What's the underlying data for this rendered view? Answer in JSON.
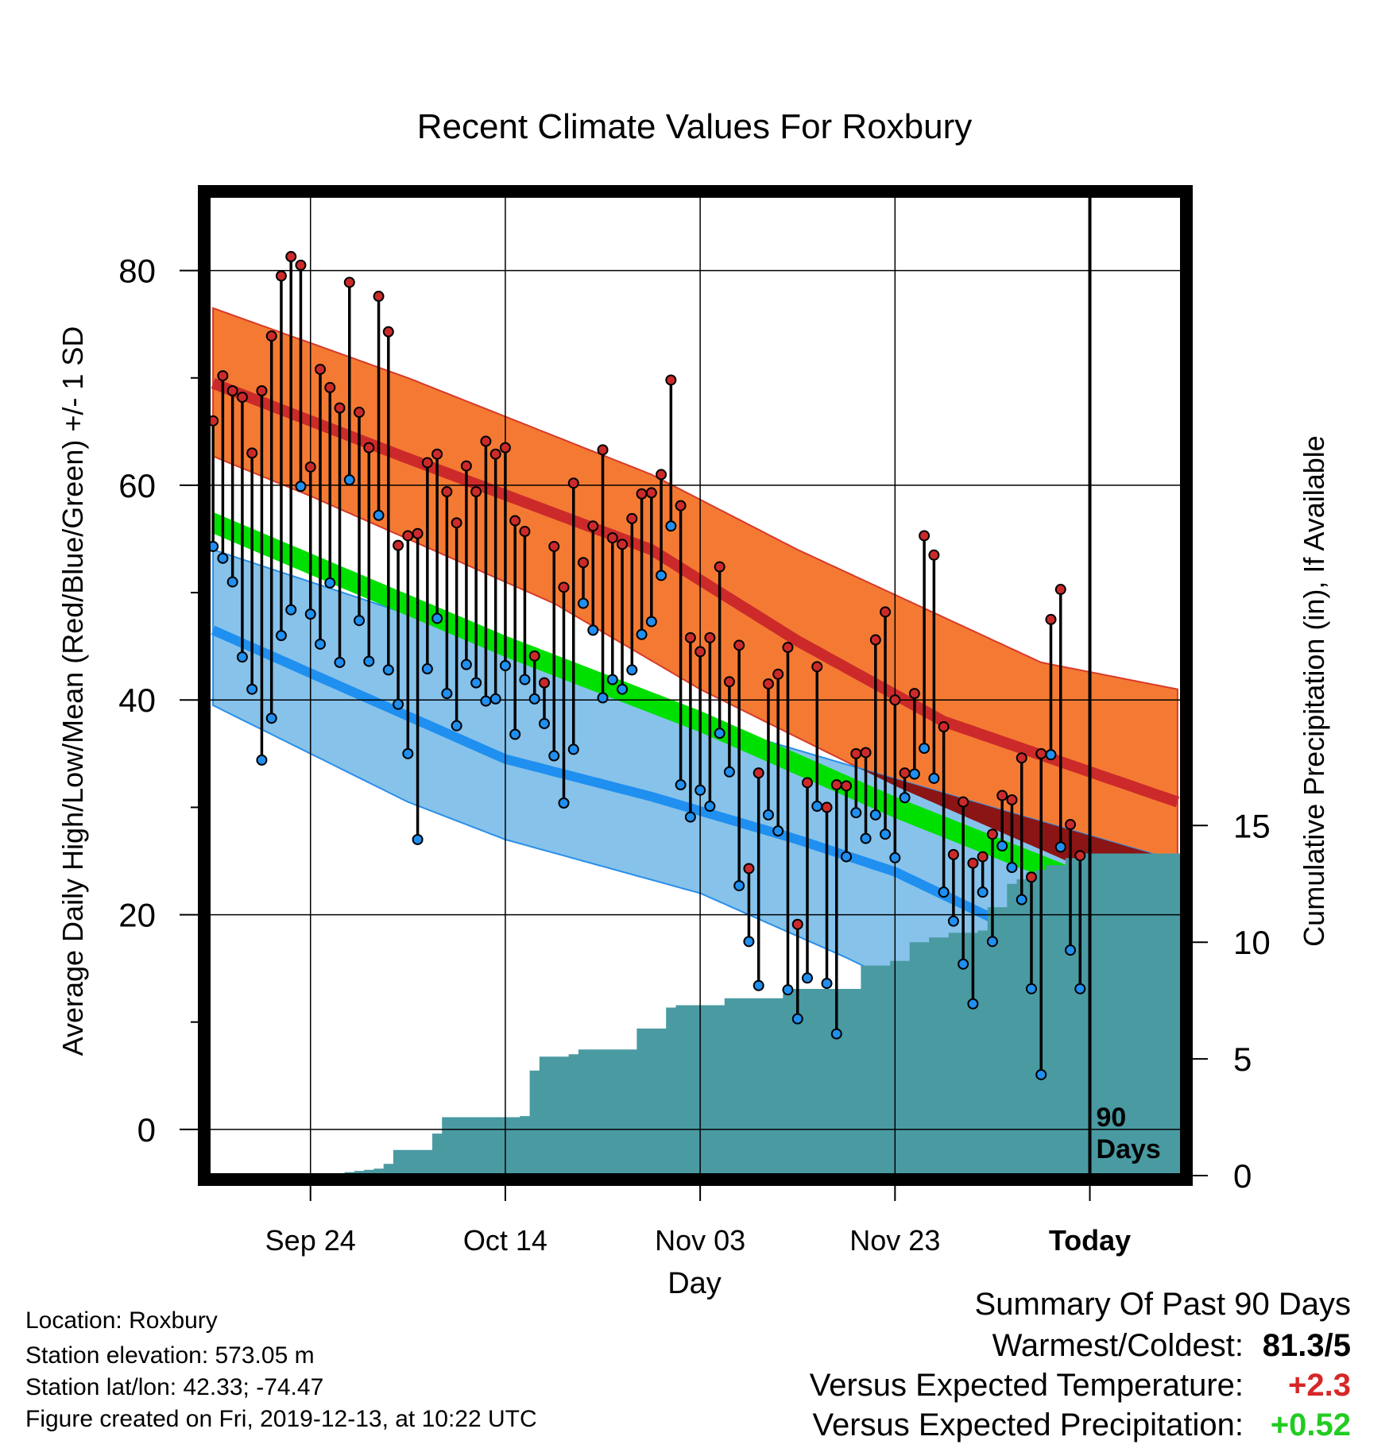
{
  "chart_data": {
    "type": "line",
    "title": "Recent Climate Values For Roxbury",
    "xlabel": "Day",
    "ylabel": "Average Daily High/Low/Mean (Red/Blue/Green) +/- 1 SD",
    "y2label": "Cumulative Precipitation (in), If Available",
    "x_tick_labels": [
      "Sep 24",
      "Oct 14",
      "Nov 03",
      "Nov 23",
      "Today"
    ],
    "x_tick_days": [
      10,
      30,
      50,
      70,
      90
    ],
    "xlim": [
      -0.5,
      99.5
    ],
    "y_ticks": [
      0,
      20,
      40,
      60,
      80
    ],
    "ylim": [
      -4.3,
      87
    ],
    "y2_ticks": [
      0,
      5,
      10,
      15
    ],
    "y2lim": [
      0,
      42
    ],
    "today_label": "90 Days",
    "grid": true,
    "colors": {
      "high_band": "#f47a33",
      "high_mean": "#cc2a2a",
      "low_band": "#86c2ea",
      "low_mean": "#1f8ff0",
      "mean_band": "#00e000",
      "overlap": "#8b1515",
      "precip": "#4a9aa2",
      "high_marker": "#cc2a2a",
      "low_marker": "#1f8ff0"
    },
    "normals": {
      "high_mean": [
        [
          0,
          69.5
        ],
        [
          20,
          62.5
        ],
        [
          45,
          54
        ],
        [
          60,
          45.5
        ],
        [
          75,
          38
        ],
        [
          99,
          30.5
        ]
      ],
      "high_upper": [
        [
          0,
          76.5
        ],
        [
          20,
          70
        ],
        [
          45,
          61
        ],
        [
          60,
          54
        ],
        [
          85,
          43.5
        ],
        [
          99,
          41
        ]
      ],
      "high_lower": [
        [
          0,
          62.7
        ],
        [
          10,
          59
        ],
        [
          20,
          55
        ],
        [
          35,
          49
        ],
        [
          50,
          41
        ],
        [
          60,
          36.5
        ],
        [
          70,
          32
        ],
        [
          99,
          20.5
        ]
      ],
      "low_mean": [
        [
          0,
          46.5
        ],
        [
          10,
          42.5
        ],
        [
          20,
          38.5
        ],
        [
          30,
          34.5
        ],
        [
          45,
          31
        ],
        [
          60,
          27
        ],
        [
          70,
          24
        ],
        [
          85,
          17.5
        ],
        [
          99,
          13.5
        ]
      ],
      "low_upper": [
        [
          0,
          54
        ],
        [
          30,
          45
        ],
        [
          50,
          38
        ],
        [
          65,
          34
        ],
        [
          80,
          30
        ],
        [
          99,
          25
        ]
      ],
      "low_lower": [
        [
          0,
          39.5
        ],
        [
          10,
          35
        ],
        [
          20,
          30.5
        ],
        [
          30,
          27
        ],
        [
          50,
          22
        ],
        [
          65,
          16
        ],
        [
          70,
          13.8
        ],
        [
          80,
          10
        ],
        [
          99,
          5
        ]
      ],
      "mean_upper": [
        [
          0,
          57.5
        ],
        [
          30,
          46
        ],
        [
          50,
          39
        ],
        [
          70,
          31
        ],
        [
          99,
          20.5
        ]
      ],
      "mean_lower": [
        [
          0,
          55.5
        ],
        [
          30,
          44
        ],
        [
          50,
          37
        ],
        [
          70,
          29
        ],
        [
          99,
          18.5
        ]
      ]
    },
    "series": [
      {
        "name": "High",
        "values": [
          66,
          70.2,
          68.8,
          68.2,
          63,
          68.8,
          73.9,
          79.5,
          81.3,
          80.5,
          61.7,
          70.8,
          69.1,
          67.2,
          78.9,
          66.8,
          63.5,
          77.6,
          74.3,
          54.4,
          55.3,
          55.5,
          62.1,
          62.9,
          59.4,
          56.5,
          61.8,
          59.4,
          64.1,
          62.9,
          63.5,
          56.7,
          55.7,
          44.1,
          41.6,
          54.3,
          50.5,
          60.2,
          52.8,
          56.2,
          63.3,
          55.1,
          54.5,
          56.9,
          59.2,
          59.3,
          61,
          69.8,
          58.1,
          45.8,
          44.5,
          45.8,
          52.4,
          41.7,
          45.1,
          24.3,
          33.2,
          41.5,
          42.4,
          44.9,
          19.1,
          32.3,
          43.1,
          30,
          32.1,
          32,
          35,
          35.1,
          45.6,
          48.2,
          40,
          33.2,
          40.6,
          55.3,
          53.5,
          37.5,
          25.6,
          30.5,
          24.8,
          25.4,
          27.5,
          31.1,
          30.7,
          34.6,
          23.5,
          35,
          47.5,
          50.3,
          28.4,
          25.5
        ]
      },
      {
        "name": "Low",
        "values": [
          54.3,
          53.2,
          51,
          44,
          41,
          34.4,
          38.3,
          46,
          48.4,
          59.9,
          48,
          45.2,
          50.9,
          43.5,
          60.5,
          47.4,
          43.6,
          57.2,
          42.8,
          39.6,
          35,
          27,
          42.9,
          47.6,
          40.6,
          37.6,
          43.3,
          41.6,
          39.9,
          40.1,
          43.2,
          36.8,
          41.9,
          40.1,
          37.8,
          34.8,
          30.4,
          35.4,
          49,
          46.5,
          40.2,
          41.9,
          41,
          42.8,
          46.1,
          47.3,
          51.6,
          56.2,
          32.1,
          29.1,
          31.6,
          30.1,
          36.9,
          33.3,
          22.7,
          17.5,
          13.4,
          29.3,
          27.8,
          13,
          10.3,
          14.1,
          30.1,
          13.6,
          8.9,
          25.4,
          29.5,
          27.1,
          29.3,
          27.5,
          25.3,
          30.9,
          33.1,
          35.5,
          32.7,
          22.1,
          19.4,
          15.4,
          11.7,
          22.1,
          17.5,
          26.4,
          24.4,
          21.4,
          13.1,
          5.1,
          34.9,
          26.3,
          16.7,
          13.1
        ]
      },
      {
        "name": "Precip",
        "values": [
          0,
          0,
          0,
          0,
          0,
          0,
          0,
          0,
          0,
          0,
          0,
          0,
          0.05,
          0.1,
          0.15,
          0.2,
          0.25,
          0.3,
          0.5,
          1.1,
          1.1,
          1.1,
          1.1,
          1.8,
          2.5,
          2.5,
          2.5,
          2.5,
          2.5,
          2.5,
          2.5,
          2.5,
          2.55,
          4.5,
          5.1,
          5.1,
          5.1,
          5.2,
          5.4,
          5.4,
          5.4,
          5.4,
          5.4,
          5.4,
          6.3,
          6.3,
          6.3,
          7.2,
          7.3,
          7.3,
          7.3,
          7.3,
          7.3,
          7.6,
          7.6,
          7.6,
          7.6,
          7.6,
          7.6,
          7.8,
          8.0,
          8.0,
          8.0,
          8.0,
          8.0,
          8.0,
          8.0,
          9.0,
          9.0,
          9.0,
          9.2,
          9.2,
          10.0,
          10.0,
          10.2,
          10.2,
          10.4,
          10.4,
          10.4,
          10.5,
          11.5,
          11.5,
          12.5,
          12.7,
          13.0,
          13.1,
          13.3,
          13.3,
          13.6,
          13.8,
          13.8,
          13.8,
          13.8,
          13.8,
          13.8,
          13.8,
          13.8,
          13.8,
          13.8,
          13.8
        ]
      }
    ]
  },
  "summary": {
    "title": "Summary Of Past 90 Days",
    "rows": [
      {
        "label": "Warmest/Coldest:",
        "value": "81.3/5",
        "color": "#000000"
      },
      {
        "label": "Versus Expected Temperature:",
        "value": "+2.3",
        "color": "#d62728"
      },
      {
        "label": "Versus Expected Precipitation:",
        "value": "+0.52",
        "color": "#22cc22"
      }
    ]
  },
  "station": {
    "location": "Location: Roxbury",
    "elevation": "Station elevation: 573.05 m",
    "latlon": "Station lat/lon: 42.33; -74.47",
    "created": "Figure created on Fri, 2019-12-13, at 10:22 UTC"
  }
}
